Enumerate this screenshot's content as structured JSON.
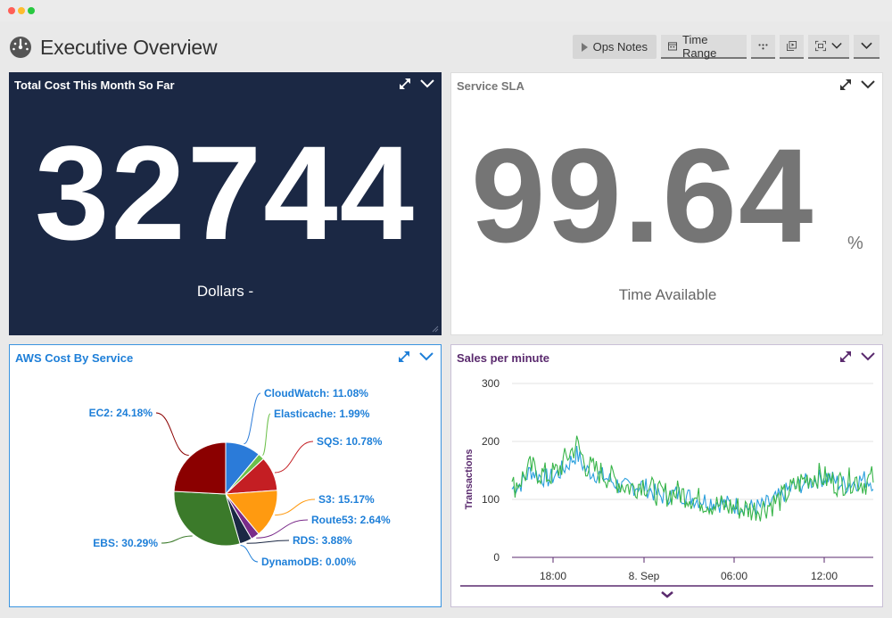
{
  "header": {
    "title": "Executive Overview",
    "toolbar": {
      "ops_notes": "Ops Notes",
      "time_range": "Time Range"
    }
  },
  "widgets": {
    "cost": {
      "title": "Total Cost This Month So Far",
      "value": "32744",
      "unit": "Dollars -"
    },
    "sla": {
      "title": "Service SLA",
      "value": "99.64",
      "suffix": "%",
      "unit": "Time Available"
    },
    "aws": {
      "title": "AWS Cost By Service"
    },
    "sales": {
      "title": "Sales per minute"
    }
  },
  "chart_data": [
    {
      "type": "pie",
      "slices": [
        {
          "label": "CloudWatch: 11.08%",
          "value": 11.08,
          "color": "#2b7bd9"
        },
        {
          "label": "Elasticache: 1.99%",
          "value": 1.99,
          "color": "#6cc04a"
        },
        {
          "label": "SQS: 10.78%",
          "value": 10.78,
          "color": "#c41e23"
        },
        {
          "label": "S3: 15.17%",
          "value": 15.17,
          "color": "#ff9a10"
        },
        {
          "label": "Route53: 2.64%",
          "value": 2.64,
          "color": "#7a2b8a"
        },
        {
          "label": "RDS: 3.88%",
          "value": 3.88,
          "color": "#1b2844"
        },
        {
          "label": "DynamoDB: 0.00%",
          "value": 0.0,
          "color": "#1e7fd8"
        },
        {
          "label": "EBS: 30.29%",
          "value": 30.29,
          "color": "#3b7a2a"
        },
        {
          "label": "EC2: 24.18%",
          "value": 24.18,
          "color": "#8b0000"
        }
      ]
    },
    {
      "type": "line",
      "ylabel": "Transactions",
      "ylim": [
        0,
        300
      ],
      "yticks": [
        "0",
        "100",
        "200",
        "300"
      ],
      "xticks": [
        "18:00",
        "8. Sep",
        "06:00",
        "12:00"
      ],
      "series": [
        {
          "color": "#2ba0dd",
          "values": [
            118,
            128,
            150,
            140,
            135,
            145,
            160,
            178,
            150,
            145,
            138,
            130,
            120,
            122,
            125,
            115,
            105,
            108,
            110,
            105,
            100,
            98,
            95,
            92,
            90,
            88,
            85,
            88,
            95,
            105,
            118,
            125,
            130,
            135,
            140,
            130,
            125,
            130,
            135,
            130
          ]
        },
        {
          "color": "#39b54a",
          "values": [
            120,
            135,
            155,
            145,
            140,
            150,
            175,
            195,
            158,
            150,
            142,
            135,
            125,
            120,
            130,
            118,
            108,
            110,
            112,
            106,
            100,
            95,
            90,
            88,
            86,
            84,
            82,
            86,
            92,
            100,
            115,
            128,
            138,
            142,
            135,
            128,
            130,
            135,
            128,
            138
          ]
        }
      ]
    }
  ]
}
